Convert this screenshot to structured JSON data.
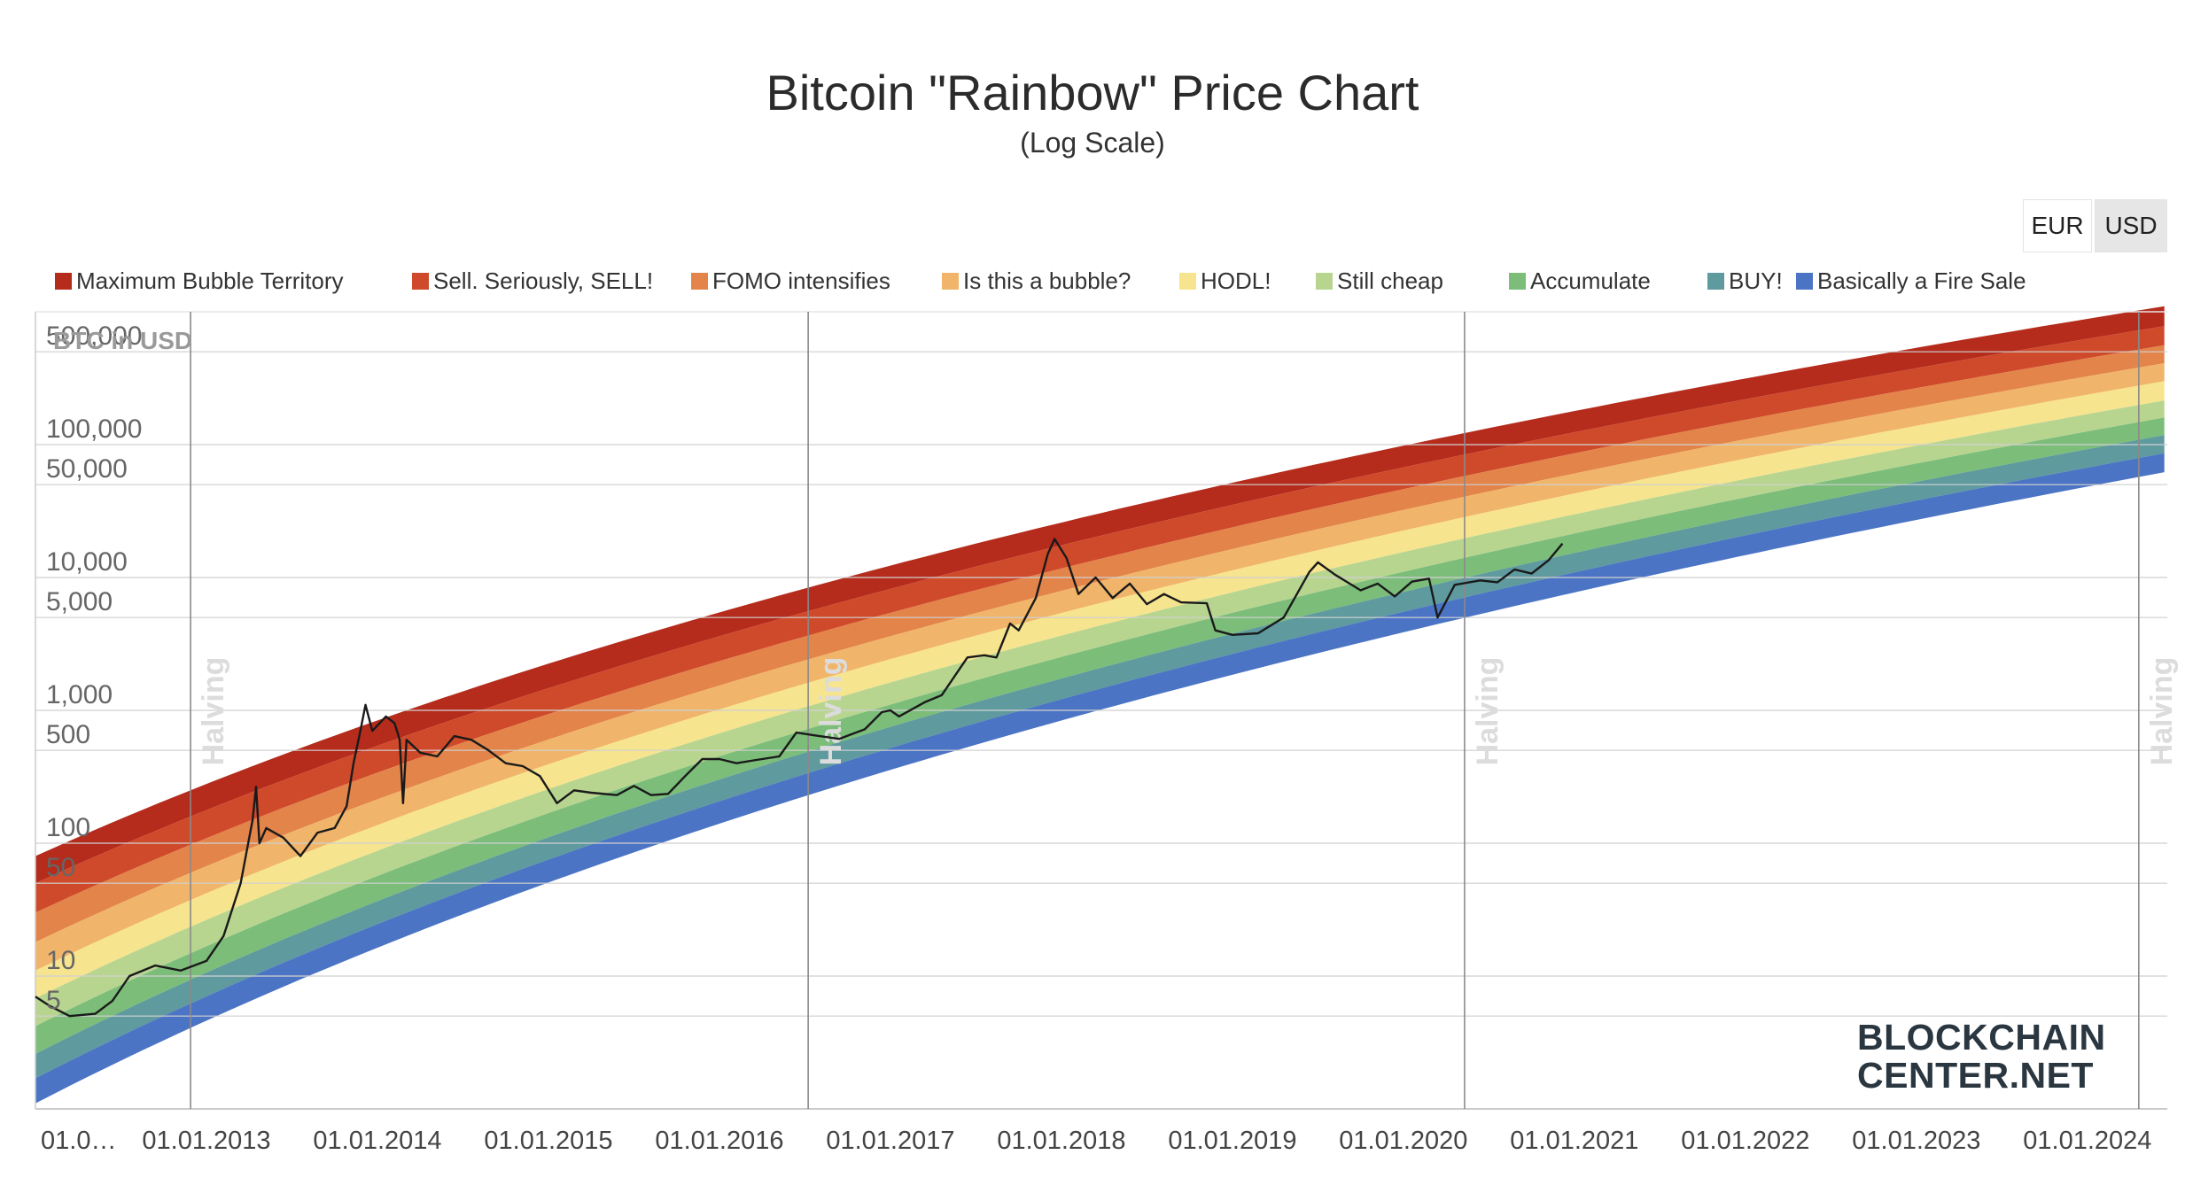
{
  "title": "Bitcoin \"Rainbow\" Price Chart",
  "subtitle": "(Log Scale)",
  "currency_buttons": [
    {
      "label": "EUR",
      "selected": false
    },
    {
      "label": "USD",
      "selected": true
    }
  ],
  "logo": {
    "line1": "BLOCKCHAIN",
    "line2": "CENTER.NET"
  },
  "chart_data": {
    "type": "area",
    "ylabel": "BTC in USD",
    "y_scale": "log",
    "ylim": [
      1,
      1000000
    ],
    "xlim": [
      "2012-01-01",
      "2024-06-20"
    ],
    "grid": true,
    "legend_position": "top",
    "y_ticks": [
      {
        "label": "500,000",
        "value": 500000
      },
      {
        "label": "100,000",
        "value": 100000
      },
      {
        "label": "50,000",
        "value": 50000
      },
      {
        "label": "10,000",
        "value": 10000
      },
      {
        "label": "5,000",
        "value": 5000
      },
      {
        "label": "1,000",
        "value": 1000
      },
      {
        "label": "500",
        "value": 500
      },
      {
        "label": "100",
        "value": 100
      },
      {
        "label": "50",
        "value": 50
      },
      {
        "label": "10",
        "value": 10
      },
      {
        "label": "5",
        "value": 5
      }
    ],
    "x_ticks": [
      {
        "label": "01.0…",
        "value": "2012-01-01"
      },
      {
        "label": "01.01.2013",
        "value": "2013-01-01"
      },
      {
        "label": "01.01.2014",
        "value": "2014-01-01"
      },
      {
        "label": "01.01.2015",
        "value": "2015-01-01"
      },
      {
        "label": "01.01.2016",
        "value": "2016-01-01"
      },
      {
        "label": "01.01.2017",
        "value": "2017-01-01"
      },
      {
        "label": "01.01.2018",
        "value": "2018-01-01"
      },
      {
        "label": "01.01.2019",
        "value": "2019-01-01"
      },
      {
        "label": "01.01.2020",
        "value": "2020-01-01"
      },
      {
        "label": "01.01.2021",
        "value": "2021-01-01"
      },
      {
        "label": "01.01.2022",
        "value": "2022-01-01"
      },
      {
        "label": "01.01.2023",
        "value": "2023-01-01"
      },
      {
        "label": "01.01.2024",
        "value": "2024-01-01"
      }
    ],
    "annotations": [
      {
        "label": "Halving",
        "date": "2012-11-28"
      },
      {
        "label": "Halving",
        "date": "2016-07-09"
      },
      {
        "label": "Halving",
        "date": "2020-05-11"
      },
      {
        "label": "Halving",
        "date": "2024-04-20"
      }
    ],
    "bands": [
      {
        "name": "Maximum Bubble Territory",
        "color": "#b52b1c",
        "start": [
          2012.0,
          80
        ],
        "end": [
          2024.45,
          1100000
        ]
      },
      {
        "name": "Sell. Seriously, SELL!",
        "color": "#cf4a2a",
        "start": [
          2012.0,
          50
        ],
        "end": [
          2024.45,
          780000
        ]
      },
      {
        "name": "FOMO intensifies",
        "color": "#e3844a",
        "start": [
          2012.0,
          30
        ],
        "end": [
          2024.45,
          560000
        ]
      },
      {
        "name": "Is this a bubble?",
        "color": "#f0b56a",
        "start": [
          2012.0,
          18
        ],
        "end": [
          2024.45,
          410000
        ]
      },
      {
        "name": "HODL!",
        "color": "#f7e48e",
        "start": [
          2012.0,
          11
        ],
        "end": [
          2024.45,
          300000
        ]
      },
      {
        "name": "Still cheap",
        "color": "#b8d590",
        "start": [
          2012.0,
          6.8
        ],
        "end": [
          2024.45,
          215000
        ]
      },
      {
        "name": "Accumulate",
        "color": "#7cbd7a",
        "start": [
          2012.0,
          4.2
        ],
        "end": [
          2024.45,
          160000
        ]
      },
      {
        "name": "BUY!",
        "color": "#5f9a9e",
        "start": [
          2012.0,
          2.6
        ],
        "end": [
          2024.45,
          118000
        ]
      },
      {
        "name": "Basically a Fire Sale",
        "color": "#4b74c4",
        "start": [
          2012.0,
          1.7
        ],
        "end": [
          2024.45,
          86000
        ],
        "bottom": [
          2012.0,
          1.1
        ],
        "bottom_end": [
          2024.45,
          62000
        ]
      }
    ],
    "price_series": {
      "name": "BTC price (USD)",
      "color": "#1a1a1a",
      "points": [
        [
          2012.0,
          7
        ],
        [
          2012.08,
          6
        ],
        [
          2012.2,
          5
        ],
        [
          2012.35,
          5.2
        ],
        [
          2012.45,
          6.5
        ],
        [
          2012.55,
          10
        ],
        [
          2012.7,
          12
        ],
        [
          2012.85,
          11
        ],
        [
          2013.0,
          13
        ],
        [
          2013.1,
          20
        ],
        [
          2013.2,
          50
        ],
        [
          2013.27,
          150
        ],
        [
          2013.29,
          266
        ],
        [
          2013.31,
          100
        ],
        [
          2013.35,
          130
        ],
        [
          2013.45,
          110
        ],
        [
          2013.55,
          80
        ],
        [
          2013.65,
          120
        ],
        [
          2013.75,
          130
        ],
        [
          2013.82,
          190
        ],
        [
          2013.86,
          400
        ],
        [
          2013.9,
          700
        ],
        [
          2013.93,
          1100
        ],
        [
          2013.97,
          700
        ],
        [
          2014.05,
          900
        ],
        [
          2014.1,
          800
        ],
        [
          2014.13,
          600
        ],
        [
          2014.15,
          200
        ],
        [
          2014.17,
          600
        ],
        [
          2014.25,
          480
        ],
        [
          2014.35,
          450
        ],
        [
          2014.45,
          640
        ],
        [
          2014.55,
          600
        ],
        [
          2014.65,
          500
        ],
        [
          2014.75,
          400
        ],
        [
          2014.85,
          380
        ],
        [
          2014.95,
          320
        ],
        [
          2015.05,
          200
        ],
        [
          2015.15,
          250
        ],
        [
          2015.25,
          240
        ],
        [
          2015.4,
          230
        ],
        [
          2015.5,
          270
        ],
        [
          2015.6,
          230
        ],
        [
          2015.7,
          235
        ],
        [
          2015.8,
          320
        ],
        [
          2015.9,
          430
        ],
        [
          2016.0,
          430
        ],
        [
          2016.1,
          400
        ],
        [
          2016.2,
          420
        ],
        [
          2016.35,
          450
        ],
        [
          2016.45,
          680
        ],
        [
          2016.55,
          650
        ],
        [
          2016.7,
          610
        ],
        [
          2016.85,
          720
        ],
        [
          2016.95,
          970
        ],
        [
          2017.0,
          1000
        ],
        [
          2017.05,
          900
        ],
        [
          2017.2,
          1150
        ],
        [
          2017.3,
          1300
        ],
        [
          2017.45,
          2500
        ],
        [
          2017.55,
          2600
        ],
        [
          2017.62,
          2500
        ],
        [
          2017.7,
          4500
        ],
        [
          2017.75,
          4000
        ],
        [
          2017.85,
          7000
        ],
        [
          2017.92,
          15000
        ],
        [
          2017.96,
          19500
        ],
        [
          2018.03,
          14000
        ],
        [
          2018.1,
          7500
        ],
        [
          2018.2,
          10000
        ],
        [
          2018.3,
          7000
        ],
        [
          2018.4,
          9000
        ],
        [
          2018.5,
          6300
        ],
        [
          2018.6,
          7500
        ],
        [
          2018.7,
          6500
        ],
        [
          2018.85,
          6400
        ],
        [
          2018.9,
          4000
        ],
        [
          2019.0,
          3700
        ],
        [
          2019.15,
          3800
        ],
        [
          2019.3,
          5000
        ],
        [
          2019.45,
          11000
        ],
        [
          2019.5,
          13000
        ],
        [
          2019.6,
          10500
        ],
        [
          2019.75,
          8000
        ],
        [
          2019.85,
          9000
        ],
        [
          2019.95,
          7200
        ],
        [
          2020.05,
          9300
        ],
        [
          2020.15,
          9800
        ],
        [
          2020.2,
          5000
        ],
        [
          2020.3,
          8800
        ],
        [
          2020.45,
          9500
        ],
        [
          2020.55,
          9200
        ],
        [
          2020.65,
          11500
        ],
        [
          2020.75,
          10700
        ],
        [
          2020.85,
          13500
        ],
        [
          2020.93,
          18000
        ]
      ]
    }
  }
}
